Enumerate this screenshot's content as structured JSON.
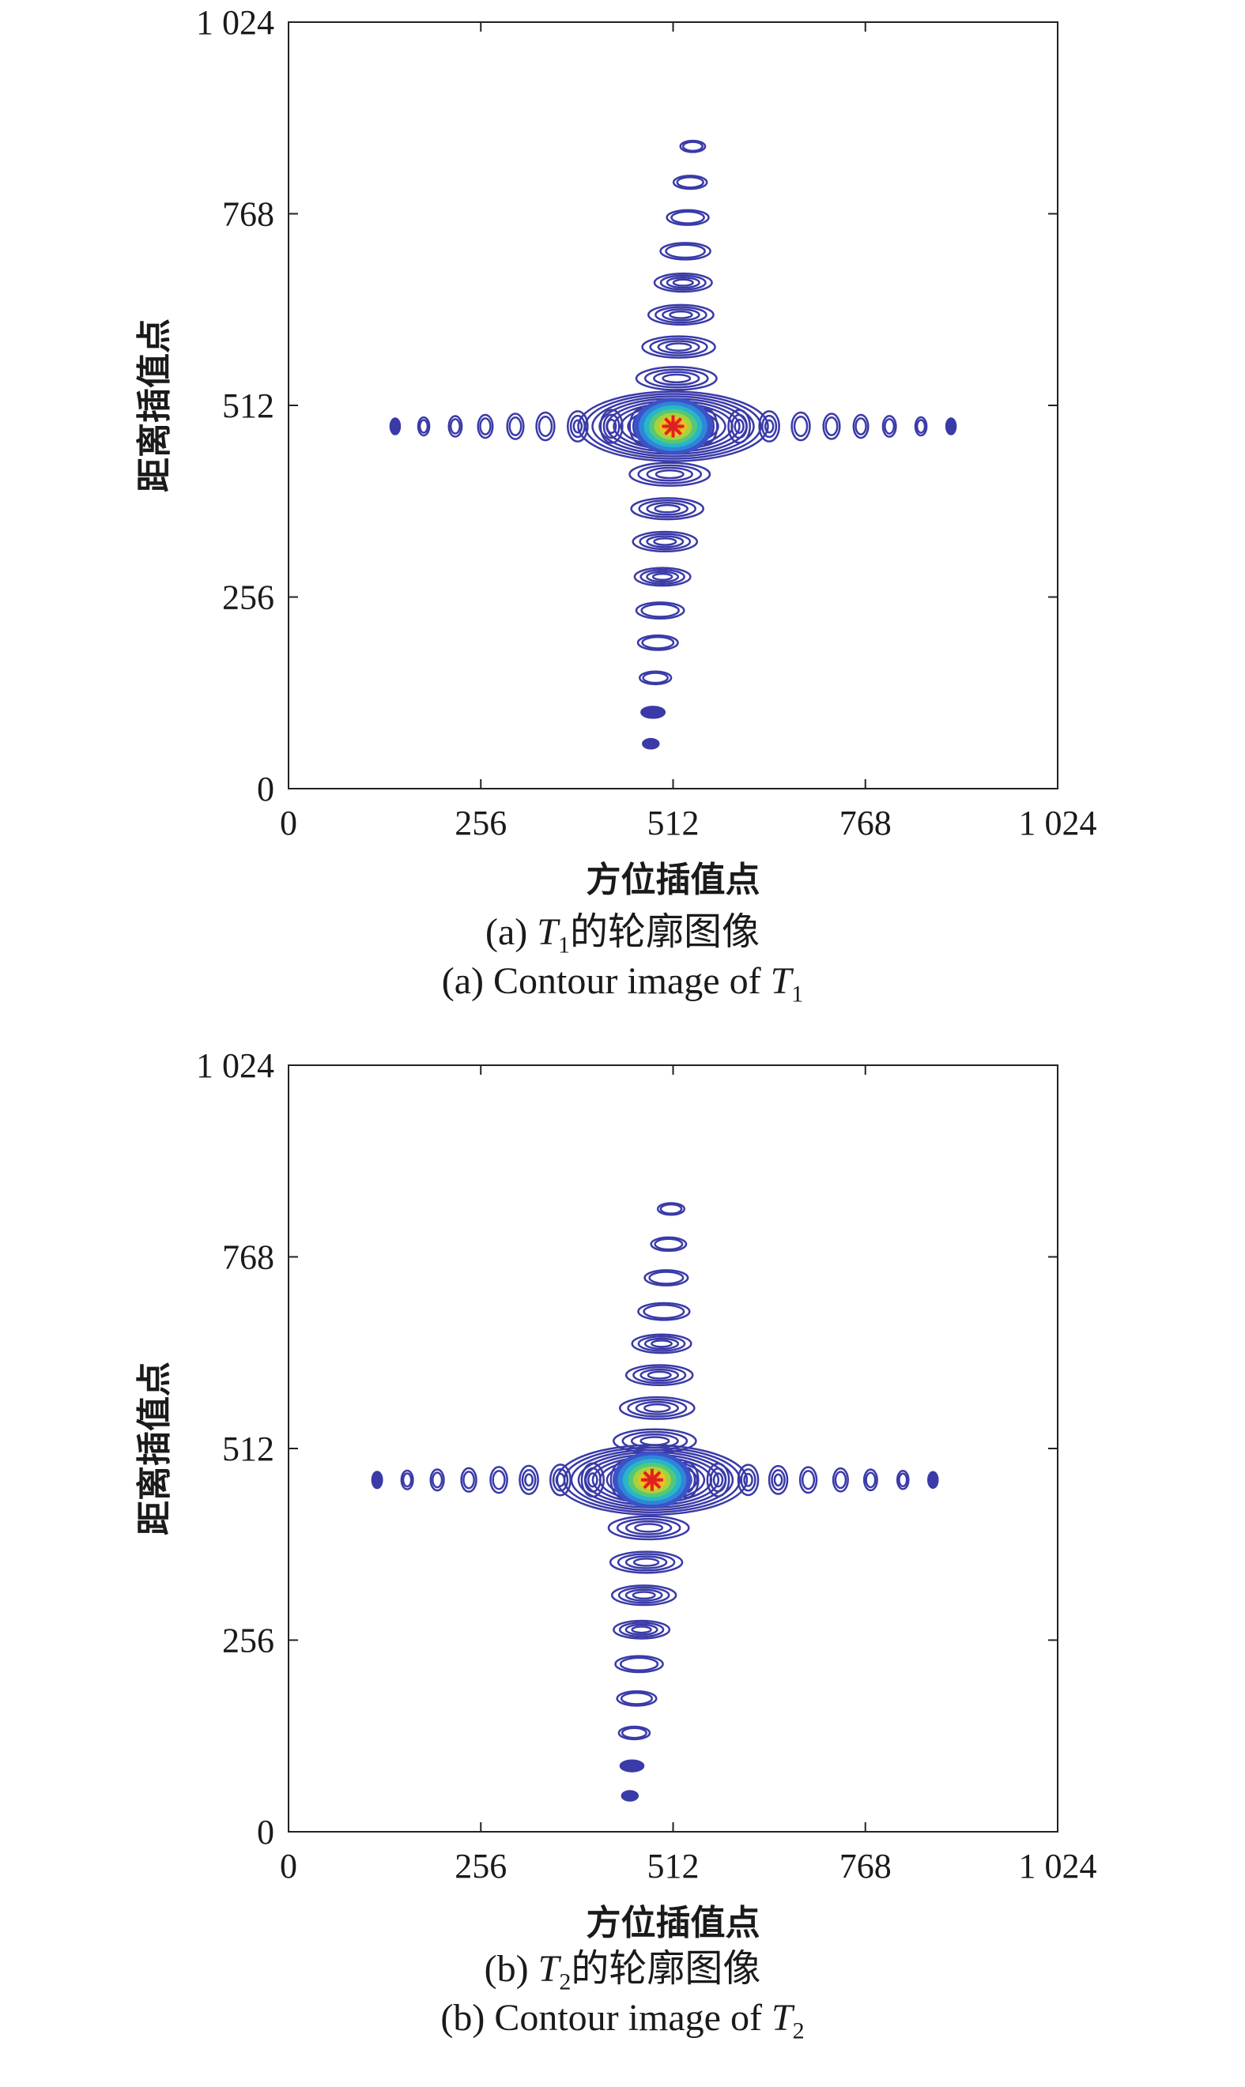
{
  "chart_data": [
    {
      "type": "contour",
      "xlabel": "方位插值点",
      "ylabel": "距离插值点",
      "xlim": [
        0,
        1024
      ],
      "ylim": [
        0,
        1024
      ],
      "xticks": [
        "0",
        "256",
        "512",
        "768",
        "1 024"
      ],
      "yticks": [
        "0",
        "256",
        "512",
        "768",
        "1 024"
      ],
      "caption_cn_prefix": "(a) ",
      "caption_cn_var": "T",
      "caption_cn_sub": "1",
      "caption_cn_suffix": "的轮廓图像",
      "caption_en_prefix": "(a) Contour image of ",
      "caption_en_var": "T",
      "caption_en_sub": "1",
      "peak": {
        "x": 512,
        "y": 484
      },
      "azimuth_lobes_x": [
        142,
        180,
        222,
        262,
        302,
        342,
        385,
        430,
        470,
        555,
        600,
        640,
        682,
        723,
        762,
        800,
        842,
        882
      ],
      "range_lobes_y": [
        858,
        810,
        763,
        718,
        676,
        633,
        590,
        548,
        420,
        374,
        330,
        283,
        238,
        195,
        148,
        102,
        60
      ]
    },
    {
      "type": "contour",
      "xlabel": "方位插值点",
      "ylabel": "距离插值点",
      "xlim": [
        0,
        1024
      ],
      "ylim": [
        0,
        1024
      ],
      "xticks": [
        "0",
        "256",
        "512",
        "768",
        "1 024"
      ],
      "yticks": [
        "0",
        "256",
        "512",
        "768",
        "1 024"
      ],
      "caption_cn_prefix": "(b) ",
      "caption_cn_var": "T",
      "caption_cn_sub": "2",
      "caption_cn_suffix": "的轮廓图像",
      "caption_en_prefix": "(b) Contour image of ",
      "caption_en_var": "T",
      "caption_en_sub": "2",
      "peak": {
        "x": 484,
        "y": 470
      },
      "azimuth_lobes_x": [
        118,
        158,
        198,
        240,
        280,
        320,
        362,
        405,
        445,
        530,
        572,
        612,
        652,
        692,
        735,
        775,
        818,
        858
      ],
      "range_lobes_y": [
        832,
        785,
        740,
        695,
        652,
        610,
        566,
        522,
        406,
        360,
        316,
        270,
        224,
        178,
        132,
        88,
        48
      ]
    }
  ],
  "colors": {
    "contour": "#3a3aa8",
    "peak_core": "#f0a020",
    "peak_marker": "#e02020"
  }
}
